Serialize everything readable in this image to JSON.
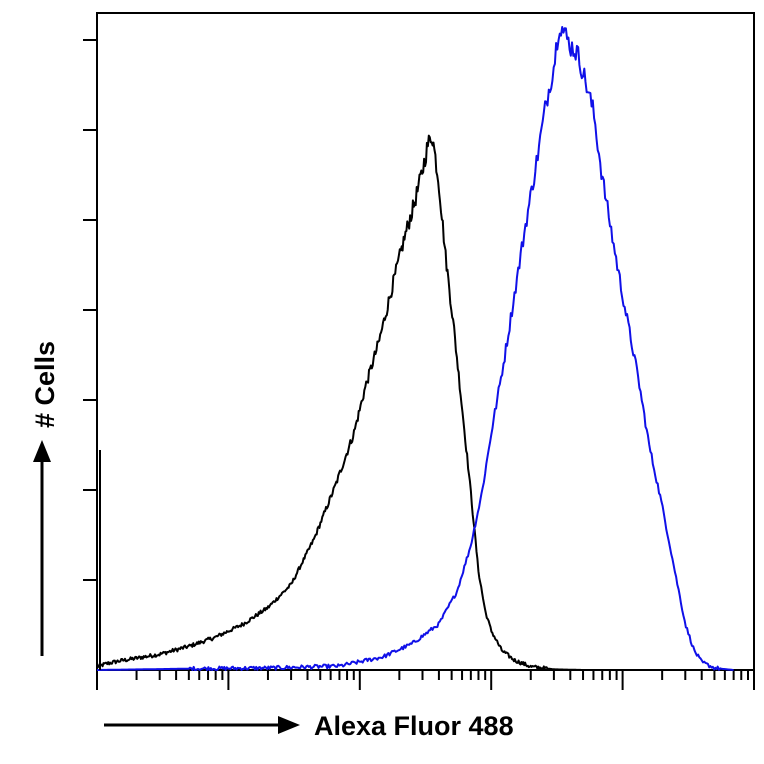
{
  "chart_data": {
    "type": "line",
    "subtype": "flow-cytometry-histogram",
    "title": "",
    "xlabel": "Alexa Fluor 488",
    "ylabel": "# Cells",
    "x_scale": "log",
    "x_range": [
      1,
      100000
    ],
    "y_range": [
      0,
      100
    ],
    "grid": false,
    "legend": "none",
    "series": [
      {
        "color": "#000000",
        "points": [
          [
            1.0,
            0.5
          ],
          [
            1.2,
            1.0
          ],
          [
            1.5,
            1.4
          ],
          [
            2,
            1.8
          ],
          [
            3,
            2.4
          ],
          [
            5,
            3.6
          ],
          [
            8,
            5.0
          ],
          [
            13,
            7.0
          ],
          [
            20,
            9.5
          ],
          [
            30,
            13
          ],
          [
            45,
            20
          ],
          [
            65,
            28
          ],
          [
            90,
            36
          ],
          [
            110,
            43
          ],
          [
            140,
            50
          ],
          [
            180,
            59
          ],
          [
            220,
            66
          ],
          [
            260,
            71
          ],
          [
            300,
            76
          ],
          [
            330,
            80
          ],
          [
            355,
            81.5
          ],
          [
            370,
            79
          ],
          [
            400,
            74
          ],
          [
            450,
            63
          ],
          [
            520,
            52
          ],
          [
            600,
            40
          ],
          [
            700,
            27
          ],
          [
            800,
            15
          ],
          [
            900,
            9
          ],
          [
            1000,
            6
          ],
          [
            1200,
            3
          ],
          [
            1500,
            1.5
          ],
          [
            2000,
            0.5
          ],
          [
            3000,
            0.1
          ],
          [
            5000,
            0
          ]
        ]
      },
      {
        "color": "#1010e8",
        "points": [
          [
            1.0,
            0
          ],
          [
            5,
            0.2
          ],
          [
            20,
            0.3
          ],
          [
            70,
            0.6
          ],
          [
            150,
            2
          ],
          [
            250,
            4
          ],
          [
            400,
            7
          ],
          [
            550,
            12
          ],
          [
            700,
            19
          ],
          [
            850,
            27
          ],
          [
            1000,
            36
          ],
          [
            1250,
            47
          ],
          [
            1500,
            57
          ],
          [
            1800,
            67
          ],
          [
            2200,
            77
          ],
          [
            2600,
            86
          ],
          [
            3000,
            92
          ],
          [
            3300,
            98.5
          ],
          [
            3600,
            97
          ],
          [
            4000,
            95
          ],
          [
            4500,
            94
          ],
          [
            5000,
            91
          ],
          [
            6000,
            85
          ],
          [
            7000,
            75
          ],
          [
            8500,
            65
          ],
          [
            10000,
            57
          ],
          [
            13000,
            45
          ],
          [
            16000,
            34
          ],
          [
            20000,
            25
          ],
          [
            25000,
            15
          ],
          [
            30000,
            7
          ],
          [
            35000,
            3
          ],
          [
            40000,
            1.2
          ],
          [
            50000,
            0.3
          ],
          [
            70000,
            0
          ]
        ]
      }
    ]
  }
}
